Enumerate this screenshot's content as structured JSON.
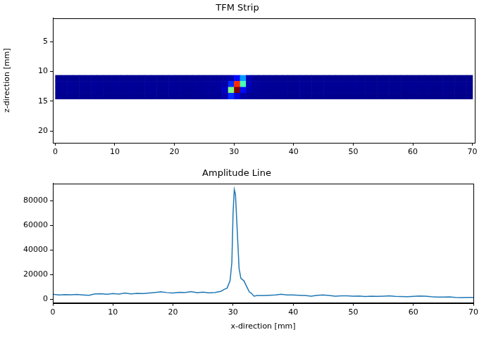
{
  "chart_data": [
    {
      "type": "heatmap",
      "title": "TFM Strip",
      "y_label": "z-direction [mm]",
      "xlim": [
        -0.4,
        70.4
      ],
      "xticks": [
        0,
        10,
        20,
        30,
        40,
        50,
        60,
        70
      ],
      "ylim": [
        22,
        1
      ],
      "yticks": [
        5,
        10,
        15,
        20
      ],
      "color_range": [
        0,
        90000
      ],
      "x_edges": [
        0,
        1,
        2,
        3,
        4,
        5,
        6,
        7,
        8,
        9,
        10,
        11,
        12,
        13,
        14,
        15,
        16,
        17,
        18,
        19,
        20,
        21,
        22,
        23,
        24,
        25,
        26,
        27,
        28,
        29,
        30,
        31,
        32,
        33,
        34,
        35,
        36,
        37,
        38,
        39,
        40,
        41,
        42,
        43,
        44,
        45,
        46,
        47,
        48,
        49,
        50,
        51,
        52,
        53,
        54,
        55,
        56,
        57,
        58,
        59,
        60,
        61,
        62,
        63,
        64,
        65,
        66,
        67,
        68,
        69,
        70
      ],
      "y_edges": [
        10.6,
        11.6,
        12.6,
        13.6,
        14.6
      ],
      "cells": [
        [
          1800,
          1500,
          1700,
          1400,
          1600,
          1500,
          1900,
          1700,
          1500,
          1600,
          1800,
          1500,
          1700,
          1600,
          1500,
          1800,
          1700,
          1600,
          1500,
          1900,
          1700,
          1600,
          1500,
          1800,
          1700,
          2000,
          1800,
          2200,
          2500,
          4000,
          12000,
          25000,
          4000,
          2000,
          1800,
          1600,
          1700,
          1500,
          1600,
          1400,
          1500,
          1700,
          1500,
          1400,
          1600,
          1500,
          1400,
          1500,
          1300,
          1400,
          1500,
          1300,
          1400,
          1200,
          1300,
          1400,
          1200,
          1300,
          1100,
          1200,
          1300,
          1100,
          1200,
          1000,
          1100,
          1200,
          1000,
          1100,
          1000,
          1000
        ],
        [
          2200,
          2000,
          2300,
          1900,
          2100,
          2000,
          2400,
          2200,
          2000,
          2100,
          2300,
          2000,
          2200,
          2100,
          2000,
          2300,
          2200,
          2100,
          2000,
          2400,
          2200,
          2100,
          2000,
          2300,
          2200,
          2500,
          2300,
          2800,
          3500,
          15000,
          75000,
          40000,
          5000,
          2600,
          2300,
          2100,
          2200,
          2000,
          2100,
          1900,
          2000,
          2200,
          2000,
          1900,
          2100,
          2000,
          1900,
          2000,
          1800,
          1900,
          2000,
          1800,
          1900,
          1700,
          1800,
          1900,
          1700,
          1800,
          1600,
          1700,
          1800,
          1600,
          1700,
          1500,
          1600,
          1700,
          1500,
          1600,
          1500,
          1500
        ],
        [
          2000,
          1800,
          2100,
          1700,
          1900,
          1800,
          2200,
          2000,
          1800,
          1900,
          2100,
          1800,
          2000,
          1900,
          1800,
          2100,
          2000,
          1900,
          1800,
          2200,
          2000,
          1900,
          1800,
          2100,
          2000,
          2300,
          2100,
          2600,
          6000,
          45000,
          90000,
          12000,
          4000,
          2400,
          2100,
          1900,
          2000,
          1800,
          1900,
          1700,
          1800,
          2000,
          1800,
          1700,
          1900,
          1800,
          1700,
          1800,
          1600,
          1700,
          1800,
          1600,
          1700,
          1500,
          1600,
          1700,
          1500,
          1600,
          1400,
          1500,
          1600,
          1400,
          1500,
          1300,
          1400,
          1500,
          1300,
          1400,
          1300,
          1300
        ],
        [
          1600,
          1400,
          1700,
          1300,
          1500,
          1400,
          1800,
          1600,
          1400,
          1500,
          1700,
          1400,
          1600,
          1500,
          1400,
          1700,
          1600,
          1500,
          1400,
          1800,
          1600,
          1500,
          1400,
          1700,
          1600,
          1900,
          1700,
          2100,
          4000,
          15000,
          8000,
          3000,
          2200,
          1900,
          1700,
          1500,
          1600,
          1400,
          1500,
          1300,
          1400,
          1600,
          1400,
          1300,
          1500,
          1400,
          1300,
          1400,
          1200,
          1300,
          1400,
          1200,
          1300,
          1100,
          1200,
          1300,
          1100,
          1200,
          1000,
          1100,
          1200,
          1000,
          1100,
          1000,
          1000,
          1100,
          1000,
          1000,
          1000,
          1000
        ]
      ]
    },
    {
      "type": "line",
      "title": "Amplitude Line",
      "x_label": "x-direction [mm]",
      "xlim": [
        0,
        70
      ],
      "xticks": [
        0,
        10,
        20,
        30,
        40,
        50,
        60,
        70
      ],
      "ylim": [
        -3000,
        94000
      ],
      "yticks": [
        0,
        20000,
        40000,
        60000,
        80000
      ],
      "color": "#1f77b4",
      "x": [
        0,
        1,
        2,
        3,
        4,
        5,
        6,
        7,
        8,
        9,
        10,
        11,
        12,
        13,
        14,
        15,
        16,
        17,
        18,
        19,
        20,
        21,
        22,
        23,
        24,
        25,
        26,
        27,
        28,
        28.5,
        29,
        29.5,
        29.8,
        30,
        30.2,
        30.4,
        30.7,
        31,
        31.3,
        31.8,
        32.3,
        32.7,
        33,
        33.5,
        34,
        35,
        36,
        37,
        38,
        39,
        40,
        41,
        42,
        43,
        44,
        45,
        46,
        47,
        48,
        49,
        50,
        51,
        52,
        53,
        54,
        55,
        56,
        57,
        58,
        59,
        60,
        61,
        62,
        63,
        64,
        65,
        66,
        67,
        68,
        69,
        70
      ],
      "values": [
        4000,
        3500,
        3800,
        3600,
        3900,
        3500,
        3200,
        4300,
        4500,
        4000,
        4600,
        4200,
        5000,
        4300,
        4800,
        4600,
        5000,
        5500,
        6000,
        5400,
        5000,
        5600,
        5500,
        6200,
        5400,
        5800,
        5200,
        5500,
        6500,
        8000,
        9000,
        15000,
        30000,
        70000,
        89000,
        85000,
        55000,
        25000,
        17000,
        15000,
        10000,
        6000,
        5000,
        2500,
        3000,
        3000,
        3200,
        3500,
        4000,
        3500,
        3500,
        3200,
        3000,
        2500,
        3200,
        3500,
        3000,
        2500,
        2800,
        2700,
        2500,
        2600,
        2200,
        2500,
        2300,
        2500,
        2800,
        2400,
        2200,
        2000,
        2300,
        2600,
        2500,
        2000,
        1800,
        1700,
        1900,
        1500,
        1400,
        1500,
        1500
      ]
    }
  ]
}
